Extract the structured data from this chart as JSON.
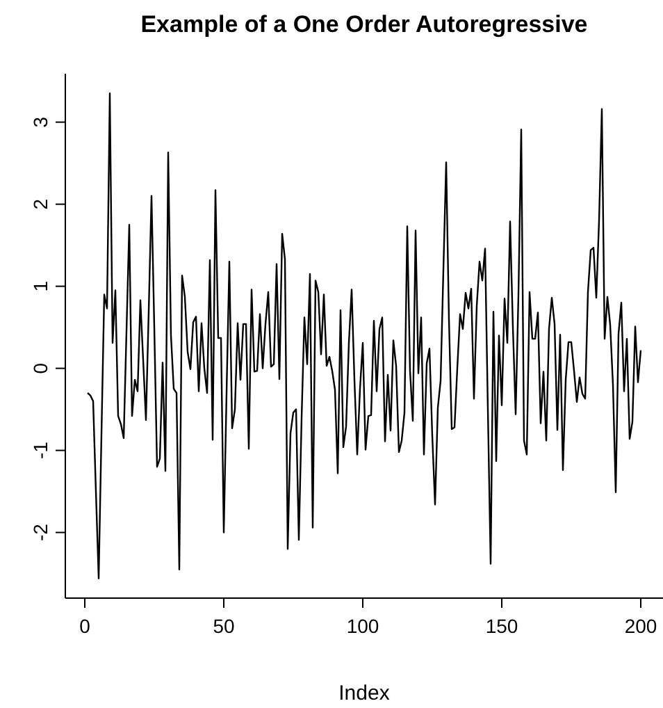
{
  "chart_data": {
    "type": "line",
    "title": "Example of a One Order Autoregressive",
    "xlabel": "Index",
    "color": "#000000",
    "x": [
      1,
      2,
      3,
      4,
      5,
      6,
      7,
      8,
      9,
      10,
      11,
      12,
      13,
      14,
      15,
      16,
      17,
      18,
      19,
      20,
      21,
      22,
      23,
      24,
      25,
      26,
      27,
      28,
      29,
      30,
      31,
      32,
      33,
      34,
      35,
      36,
      37,
      38,
      39,
      40,
      41,
      42,
      43,
      44,
      45,
      46,
      47,
      48,
      49,
      50,
      51,
      52,
      53,
      54,
      55,
      56,
      57,
      58,
      59,
      60,
      61,
      62,
      63,
      64,
      65,
      66,
      67,
      68,
      69,
      70,
      71,
      72,
      73,
      74,
      75,
      76,
      77,
      78,
      79,
      80,
      81,
      82,
      83,
      84,
      85,
      86,
      87,
      88,
      89,
      90,
      91,
      92,
      93,
      94,
      95,
      96,
      97,
      98,
      99,
      100,
      101,
      102,
      103,
      104,
      105,
      106,
      107,
      108,
      109,
      110,
      111,
      112,
      113,
      114,
      115,
      116,
      117,
      118,
      119,
      120,
      121,
      122,
      123,
      124,
      125,
      126,
      127,
      128,
      129,
      130,
      131,
      132,
      133,
      134,
      135,
      136,
      137,
      138,
      139,
      140,
      141,
      142,
      143,
      144,
      145,
      146,
      147,
      148,
      149,
      150,
      151,
      152,
      153,
      154,
      155,
      156,
      157,
      158,
      159,
      160,
      161,
      162,
      163,
      164,
      165,
      166,
      167,
      168,
      169,
      170,
      171,
      172,
      173,
      174,
      175,
      176,
      177,
      178,
      179,
      180,
      181,
      182,
      183,
      184,
      185,
      186,
      187,
      188,
      189,
      190,
      191,
      192,
      193,
      194,
      195,
      196,
      197,
      198,
      199,
      200
    ],
    "values": [
      -0.3,
      -0.33,
      -0.4,
      -1.5,
      -2.56,
      -0.8,
      0.9,
      0.73,
      3.35,
      0.31,
      0.95,
      -0.58,
      -0.68,
      -0.85,
      0.45,
      1.75,
      -0.58,
      -0.14,
      -0.28,
      0.83,
      0.1,
      -0.63,
      0.7,
      2.1,
      0.5,
      -1.2,
      -1.1,
      0.07,
      -1.25,
      2.63,
      0.4,
      -0.25,
      -0.3,
      -2.45,
      1.13,
      0.87,
      0.2,
      -0.01,
      0.56,
      0.63,
      -0.28,
      0.55,
      0,
      -0.3,
      1.32,
      -0.87,
      2.17,
      0.37,
      0.37,
      -2.0,
      -0.3,
      1.3,
      -0.73,
      -0.5,
      0.55,
      -0.14,
      0.54,
      0.54,
      -0.98,
      0.96,
      -0.04,
      -0.03,
      0.66,
      0,
      0.54,
      0.93,
      0.02,
      0.05,
      1.27,
      -0.13,
      1.64,
      1.33,
      -2.2,
      -0.79,
      -0.54,
      -0.5,
      -2.09,
      -0.6,
      0.62,
      0.05,
      1.15,
      -1.94,
      1.07,
      0.93,
      0.17,
      0.9,
      0.03,
      0.14,
      -0.03,
      -0.26,
      -1.28,
      0.71,
      -0.96,
      -0.71,
      0.31,
      0.96,
      -0.14,
      -1.05,
      -0.25,
      0.31,
      -0.99,
      -0.58,
      -0.57,
      0.58,
      -0.28,
      0.48,
      0.62,
      -0.89,
      -0.08,
      -0.76,
      0.34,
      0.03,
      -1.02,
      -0.88,
      -0.54,
      1.73,
      -0.03,
      -0.64,
      1.68,
      -0.06,
      0.62,
      -1.05,
      0.06,
      0.24,
      -0.82,
      -1.66,
      -0.48,
      -0.15,
      1.2,
      2.51,
      0.6,
      -0.74,
      -0.72,
      0,
      0.66,
      0.48,
      0.92,
      0.73,
      0.97,
      -0.37,
      0.76,
      1.3,
      1.07,
      1.46,
      -0.5,
      -2.38,
      0.69,
      -1.13,
      0.4,
      -0.45,
      0.85,
      0.31,
      1.79,
      0.5,
      -0.56,
      0.9,
      2.91,
      -0.88,
      -1.05,
      0.93,
      0.36,
      0.36,
      0.68,
      -0.67,
      -0.04,
      -0.88,
      0.48,
      0.86,
      0.54,
      -0.75,
      0.41,
      -1.24,
      -0.14,
      0.32,
      0.32,
      -0.03,
      -0.41,
      -0.11,
      -0.31,
      -0.37,
      0.93,
      1.44,
      1.47,
      0.86,
      1.8,
      3.16,
      0.36,
      0.87,
      0.53,
      -0.2,
      -1.51,
      0.42,
      0.8,
      -0.28,
      0.36,
      -0.86,
      -0.65,
      0.51,
      -0.17,
      0.22
    ],
    "xlim": [
      -7,
      208
    ],
    "ylim": [
      -2.8,
      3.59
    ],
    "xticks": [
      0,
      50,
      100,
      150,
      200
    ],
    "yticks": [
      -2,
      -1,
      0,
      1,
      2,
      3
    ]
  }
}
